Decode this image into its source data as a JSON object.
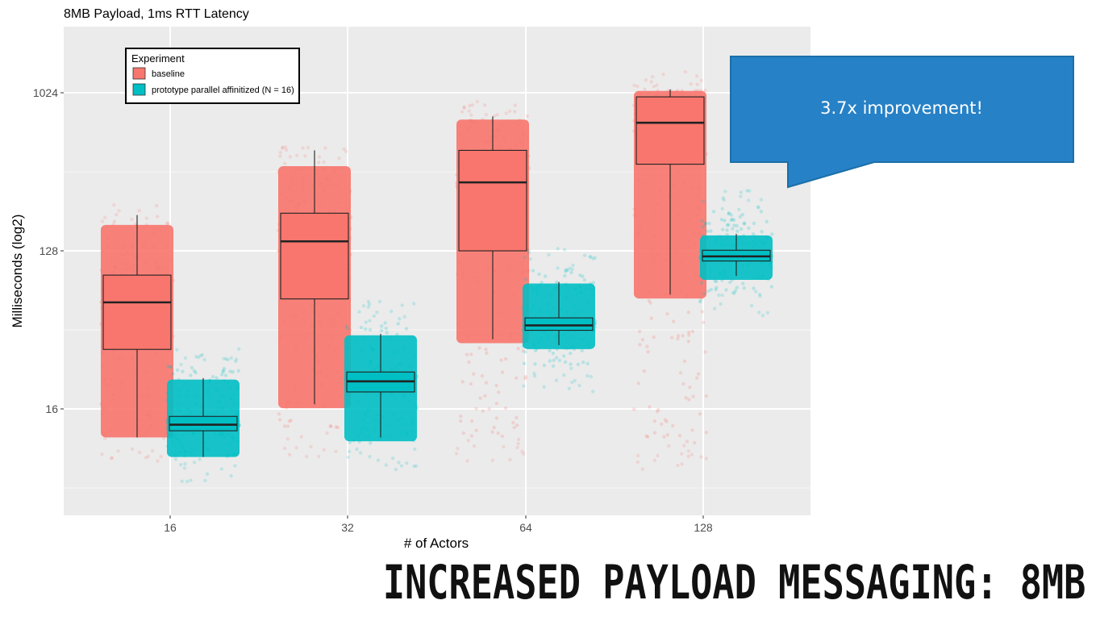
{
  "slide": {
    "title": "INCREASED PAYLOAD MESSAGING: 8MB",
    "callout": "3.7x improvement!",
    "callout_color": "#2681C7"
  },
  "chart_data": {
    "type": "box",
    "title": "8MB Payload, 1ms RTT Latency",
    "xlabel": "# of Actors",
    "ylabel": "Milliseconds (log2)",
    "y_scale": "log2",
    "ylim": [
      4.2,
      2300
    ],
    "y_ticks": [
      16,
      128,
      1024
    ],
    "y_tick_labels": [
      "16",
      "128",
      "1024"
    ],
    "categories": [
      "16",
      "32",
      "64",
      "128"
    ],
    "grid": true,
    "legend": {
      "title": "Experiment",
      "placement": "top-left",
      "entries": [
        "baseline",
        "prototype parallel affinitized (N = 16)"
      ]
    },
    "series": [
      {
        "name": "baseline",
        "color": "#F8766D",
        "boxes": [
          {
            "category": "16",
            "min": 11,
            "q1": 35,
            "median": 65,
            "q3": 93,
            "max": 205,
            "points_low": 11,
            "points_high": 180
          },
          {
            "category": "32",
            "min": 17,
            "q1": 68,
            "median": 145,
            "q3": 210,
            "max": 480,
            "points_low": 12,
            "points_high": 390
          },
          {
            "category": "64",
            "min": 40,
            "q1": 128,
            "median": 315,
            "q3": 480,
            "max": 750,
            "points_low": 11,
            "points_high": 720
          },
          {
            "category": "128",
            "min": 72,
            "q1": 400,
            "median": 690,
            "q3": 970,
            "max": 1070,
            "points_low": 10,
            "points_high": 1050
          }
        ]
      },
      {
        "name": "prototype parallel affinitized (N = 16)",
        "color": "#00BFC4",
        "boxes": [
          {
            "category": "16",
            "min": 8.5,
            "q1": 12,
            "median": 13,
            "q3": 14.5,
            "max": 24,
            "points_low": 8.5,
            "points_high": 28
          },
          {
            "category": "32",
            "min": 11,
            "q1": 20,
            "median": 23,
            "q3": 26,
            "max": 43,
            "points_low": 10,
            "points_high": 50
          },
          {
            "category": "64",
            "min": 37,
            "q1": 45,
            "median": 48,
            "q3": 53,
            "max": 85,
            "points_low": 28,
            "points_high": 100
          },
          {
            "category": "128",
            "min": 92,
            "q1": 112,
            "median": 119,
            "q3": 129,
            "max": 160,
            "points_low": 75,
            "points_high": 220
          }
        ]
      }
    ]
  }
}
